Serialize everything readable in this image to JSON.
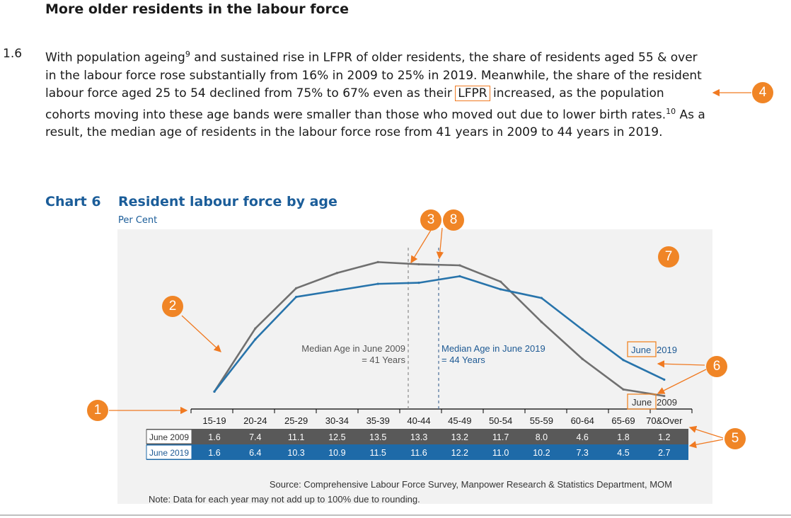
{
  "heading": "More older residents in the labour force",
  "paragraph": {
    "number": "1.6",
    "s1": "With population ageing",
    "fn9": "9",
    "s2": " and sustained rise in LFPR of older residents, the share of residents aged 55 & over in the labour force rose substantially from 16% in 2009 to 25% in 2019.  Meanwhile, the share of the resident labour force aged 25 to 54 declined from 75% to 67% even as their ",
    "lfpr": "LFPR",
    "s3": " increased, as the population cohorts moving into these age bands were smaller than those who moved out due to lower birth rates.",
    "fn10": "10",
    "s4": "  As a result, the median age of residents in the labour force rose from 41 years in 2009 to 44 years in 2019."
  },
  "chart_header": {
    "number": "Chart 6",
    "title": "Resident labour force by age",
    "unit": "Per Cent"
  },
  "chart_data": {
    "type": "line",
    "title": "Resident labour force by age",
    "ylabel": "Per Cent",
    "xlabel": "",
    "categories": [
      "15-19",
      "20-24",
      "25-29",
      "30-34",
      "35-39",
      "40-44",
      "45-49",
      "50-54",
      "55-59",
      "60-64",
      "65-69",
      "70&Over"
    ],
    "series": [
      {
        "name": "June 2009",
        "values": [
          1.6,
          7.4,
          11.1,
          12.5,
          13.5,
          13.3,
          13.2,
          11.7,
          8.0,
          4.6,
          1.8,
          1.2
        ],
        "color": "#707070"
      },
      {
        "name": "June 2019",
        "values": [
          1.6,
          6.4,
          10.3,
          10.9,
          11.5,
          11.6,
          12.2,
          11.0,
          10.2,
          7.3,
          4.5,
          2.7
        ],
        "color": "#2874ab"
      }
    ],
    "ylim": [
      0,
      14.5
    ],
    "grid": false,
    "annotations": [
      {
        "lines": [
          "Median Age in June 2009",
          "= 41 Years"
        ],
        "series": "June 2009"
      },
      {
        "lines": [
          "Median Age in June 2019",
          "= 44 Years"
        ],
        "series": "June 2019"
      }
    ],
    "series_labels": [
      {
        "prefix": "June",
        "year": "2019"
      },
      {
        "prefix": "June",
        "year": "2009"
      }
    ],
    "table": {
      "rows": [
        {
          "label": "June 2009",
          "values": [
            "1.6",
            "7.4",
            "11.1",
            "12.5",
            "13.5",
            "13.3",
            "13.2",
            "11.7",
            "8.0",
            "4.6",
            "1.8",
            "1.2"
          ]
        },
        {
          "label": "June 2019",
          "values": [
            "1.6",
            "6.4",
            "10.3",
            "10.9",
            "11.5",
            "11.6",
            "12.2",
            "11.0",
            "10.2",
            "7.3",
            "4.5",
            "2.7"
          ]
        }
      ]
    },
    "source": "Source: Comprehensive Labour Force Survey, Manpower Research & Statistics Department, MOM",
    "note": "Note:  Data for each year may not add up to 100% due to rounding."
  },
  "badges": [
    "1",
    "2",
    "3",
    "8",
    "4",
    "5",
    "6",
    "7"
  ],
  "colors": {
    "accent": "#f08526",
    "title_blue": "#1b5d99",
    "plot_bg": "#f2f2f2",
    "row2009_bg": "#595959",
    "row2019_bg": "#1e6aa8"
  }
}
